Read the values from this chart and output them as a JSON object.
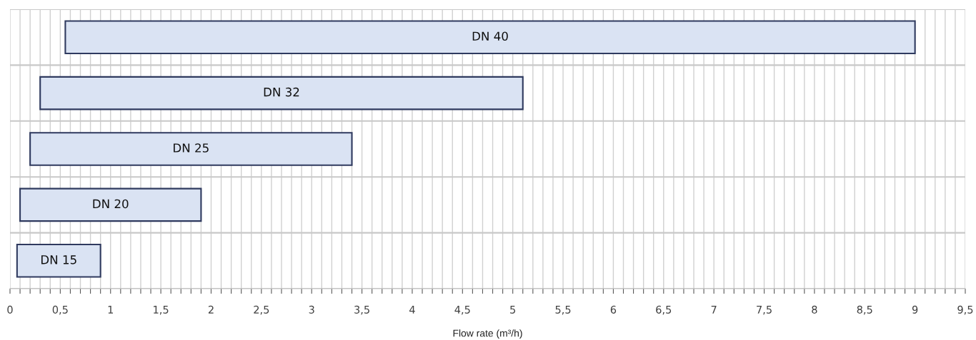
{
  "chart_data": {
    "type": "bar",
    "orientation": "horizontal",
    "xlabel": "Flow rate (m³/h)",
    "categories": [
      "DN 40",
      "DN 32",
      "DN 25",
      "DN 20",
      "DN 15"
    ],
    "base": [
      0.55,
      0.3,
      0.2,
      0.1,
      0.07
    ],
    "values": [
      8.45,
      4.8,
      3.2,
      1.8,
      0.83
    ],
    "color": "#dae3f3",
    "xlim": [
      0,
      9.5
    ],
    "xticks": [
      0,
      {
        "value": 0.1,
        "label": null
      },
      {
        "value": 0.2,
        "label": null
      },
      {
        "value": 0.3,
        "label": null
      },
      {
        "value": 0.4,
        "label": null
      },
      {
        "value": 0.5,
        "label": "0,5"
      },
      {
        "value": 0.6,
        "label": null
      },
      {
        "value": 0.7,
        "label": null
      },
      {
        "value": 0.8,
        "label": null
      },
      {
        "value": 0.9,
        "label": null
      },
      1,
      {
        "value": 1.1,
        "label": null
      },
      {
        "value": 1.2,
        "label": null
      },
      {
        "value": 1.3,
        "label": null
      },
      {
        "value": 1.4,
        "label": null
      },
      {
        "value": 1.5,
        "label": "1,5"
      },
      {
        "value": 1.6,
        "label": null
      },
      {
        "value": 1.7,
        "label": null
      },
      {
        "value": 1.8,
        "label": null
      },
      {
        "value": 1.9,
        "label": null
      },
      2,
      {
        "value": 2.1,
        "label": null
      },
      {
        "value": 2.2,
        "label": null
      },
      {
        "value": 2.3,
        "label": null
      },
      {
        "value": 2.4,
        "label": null
      },
      {
        "value": 2.5,
        "label": "2,5"
      },
      {
        "value": 2.6,
        "label": null
      },
      {
        "value": 2.7,
        "label": null
      },
      {
        "value": 2.8,
        "label": null
      },
      {
        "value": 2.9,
        "label": null
      },
      3,
      {
        "value": 3.1,
        "label": null
      },
      {
        "value": 3.2,
        "label": null
      },
      {
        "value": 3.3,
        "label": null
      },
      {
        "value": 3.4,
        "label": null
      },
      {
        "value": 3.5,
        "label": "3,5"
      },
      {
        "value": 3.6,
        "label": null
      },
      {
        "value": 3.7,
        "label": null
      },
      {
        "value": 3.8,
        "label": null
      },
      {
        "value": 3.9,
        "label": null
      },
      4,
      {
        "value": 4.1,
        "label": null
      },
      {
        "value": 4.2,
        "label": null
      },
      {
        "value": 4.3,
        "label": null
      },
      {
        "value": 4.4,
        "label": null
      },
      {
        "value": 4.5,
        "label": "4,5"
      },
      {
        "value": 4.6,
        "label": null
      },
      {
        "value": 4.7,
        "label": null
      },
      {
        "value": 4.8,
        "label": null
      },
      {
        "value": 4.9,
        "label": null
      },
      5,
      {
        "value": 5.1,
        "label": null
      },
      {
        "value": 5.2,
        "label": null
      },
      {
        "value": 5.3,
        "label": null
      },
      {
        "value": 5.4,
        "label": null
      },
      {
        "value": 5.5,
        "label": "5,5"
      },
      {
        "value": 5.6,
        "label": null
      },
      {
        "value": 5.7,
        "label": null
      },
      {
        "value": 5.8,
        "label": null
      },
      {
        "value": 5.9,
        "label": null
      },
      6,
      {
        "value": 6.1,
        "label": null
      },
      {
        "value": 6.2,
        "label": null
      },
      {
        "value": 6.3,
        "label": null
      },
      {
        "value": 6.4,
        "label": null
      },
      {
        "value": 6.5,
        "label": "6,5"
      },
      {
        "value": 6.6,
        "label": null
      },
      {
        "value": 6.7,
        "label": null
      },
      {
        "value": 6.8,
        "label": null
      },
      {
        "value": 6.9,
        "label": null
      },
      7,
      {
        "value": 7.1,
        "label": null
      },
      {
        "value": 7.2,
        "label": null
      },
      {
        "value": 7.3,
        "label": null
      },
      {
        "value": 7.4,
        "label": null
      },
      {
        "value": 7.5,
        "label": "7,5"
      },
      {
        "value": 7.6,
        "label": null
      },
      {
        "value": 7.7,
        "label": null
      },
      {
        "value": 7.8,
        "label": null
      },
      {
        "value": 7.9,
        "label": null
      },
      8,
      {
        "value": 8.1,
        "label": null
      },
      {
        "value": 8.2,
        "label": null
      },
      {
        "value": 8.3,
        "label": null
      },
      {
        "value": 8.4,
        "label": null
      },
      {
        "value": 8.5,
        "label": "8,5"
      },
      {
        "value": 8.6,
        "label": null
      },
      {
        "value": 8.7,
        "label": null
      },
      {
        "value": 8.8,
        "label": null
      },
      {
        "value": 8.9,
        "label": null
      },
      9,
      {
        "value": 9.1,
        "label": null
      },
      {
        "value": 9.2,
        "label": null
      },
      {
        "value": 9.3,
        "label": null
      },
      {
        "value": 9.4,
        "label": null
      },
      {
        "value": 9.5,
        "label": "9,5"
      }
    ],
    "tick_labels": "x",
    "grid": true,
    "legend": false
  }
}
